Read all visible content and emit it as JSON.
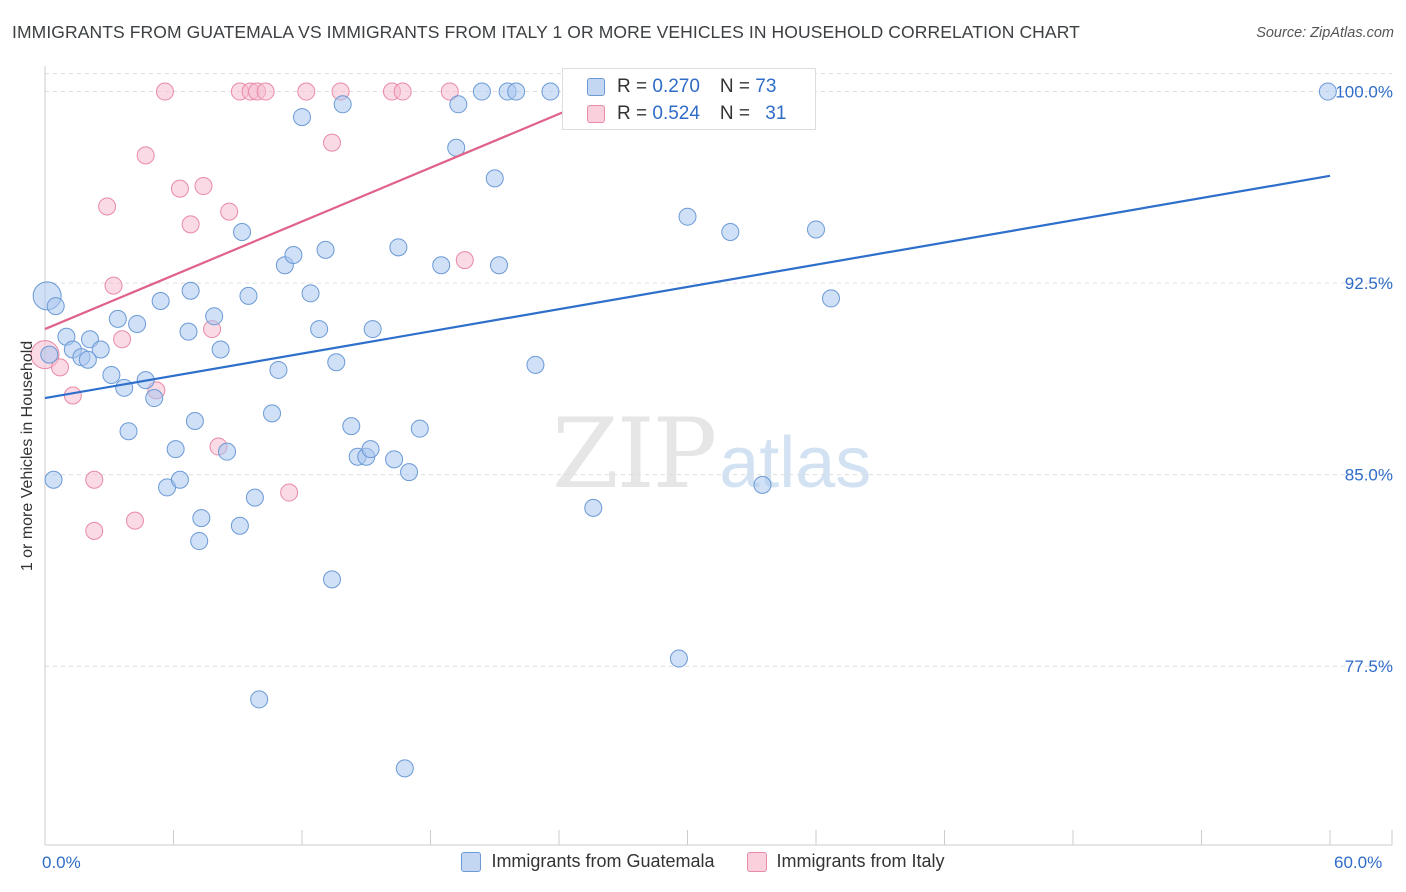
{
  "title": "IMMIGRANTS FROM GUATEMALA VS IMMIGRANTS FROM ITALY 1 OR MORE VEHICLES IN HOUSEHOLD CORRELATION CHART",
  "source": "Source: ZipAtlas.com",
  "watermark": {
    "zip": "ZIP",
    "atlas": "atlas"
  },
  "colors": {
    "guatemala_fill": "#a9c6ee",
    "guatemala_stroke": "#6b9ad6",
    "guatemala_line": "#2e6fcc",
    "italy_fill": "#f6bccd",
    "italy_stroke": "#e98aa6",
    "italy_line": "#e0628a",
    "tick_label": "#2f6cc8",
    "grid": "#dddddd"
  },
  "legend_box": {
    "rows": [
      {
        "series": "guatemala",
        "r_label": "R = ",
        "r_value": "0.270",
        "n_label": "N = ",
        "n_value": "73"
      },
      {
        "series": "italy",
        "r_label": "R = ",
        "r_value": "0.524",
        "n_label": "N = ",
        "n_value": "31"
      }
    ]
  },
  "bottom_legend": [
    {
      "series": "guatemala",
      "label": "Immigrants from Guatemala"
    },
    {
      "series": "italy",
      "label": "Immigrants from Italy"
    }
  ],
  "chart_data": {
    "type": "scatter",
    "title": "IMMIGRANTS FROM GUATEMALA VS IMMIGRANTS FROM ITALY 1 OR MORE VEHICLES IN HOUSEHOLD CORRELATION CHART",
    "xlabel": "",
    "ylabel": "1 or more Vehicles in Household",
    "xlim": [
      0,
      60
    ],
    "ylim": [
      70.5,
      101
    ],
    "x_tick_labels": [
      {
        "x": 0,
        "label": "0.0%"
      },
      {
        "x": 60,
        "label": "60.0%"
      }
    ],
    "y_ticks": [
      {
        "y": 100,
        "label": "100.0%"
      },
      {
        "y": 92.5,
        "label": "92.5%"
      },
      {
        "y": 85,
        "label": "85.0%"
      },
      {
        "y": 77.5,
        "label": "77.5%"
      }
    ],
    "x_minor_ticks": [
      0,
      6,
      12,
      18,
      24,
      30,
      36,
      42,
      48,
      54,
      60
    ],
    "grid": true,
    "legend_position": "top-center",
    "series": [
      {
        "name": "Immigrants from Guatemala",
        "key": "guatemala",
        "R": 0.27,
        "N": 73,
        "trend": [
          [
            0,
            88.0
          ],
          [
            60,
            96.7
          ]
        ],
        "points": [
          [
            0.1,
            92.0
          ],
          [
            0.5,
            91.6
          ],
          [
            1.0,
            90.4
          ],
          [
            1.3,
            89.9
          ],
          [
            1.7,
            89.6
          ],
          [
            2.1,
            90.3
          ],
          [
            2.6,
            89.9
          ],
          [
            3.1,
            88.9
          ],
          [
            3.4,
            91.1
          ],
          [
            3.7,
            88.4
          ],
          [
            4.3,
            90.9
          ],
          [
            4.7,
            88.7
          ],
          [
            5.1,
            88.0
          ],
          [
            5.4,
            91.8
          ],
          [
            3.9,
            86.7
          ],
          [
            5.7,
            84.5
          ],
          [
            6.1,
            86.0
          ],
          [
            6.3,
            84.8
          ],
          [
            7.0,
            87.1
          ],
          [
            7.3,
            83.3
          ],
          [
            7.2,
            82.4
          ],
          [
            6.7,
            90.6
          ],
          [
            6.8,
            92.2
          ],
          [
            7.9,
            91.2
          ],
          [
            8.2,
            89.9
          ],
          [
            8.5,
            85.9
          ],
          [
            9.1,
            83.0
          ],
          [
            9.8,
            84.1
          ],
          [
            9.2,
            94.5
          ],
          [
            9.5,
            92.0
          ],
          [
            10.6,
            87.4
          ],
          [
            10.9,
            89.1
          ],
          [
            11.2,
            93.2
          ],
          [
            11.6,
            93.6
          ],
          [
            12.4,
            92.1
          ],
          [
            12.0,
            99.0
          ],
          [
            12.8,
            90.7
          ],
          [
            13.1,
            93.8
          ],
          [
            13.6,
            89.4
          ],
          [
            13.9,
            99.5
          ],
          [
            14.3,
            86.9
          ],
          [
            14.6,
            85.7
          ],
          [
            15.0,
            85.7
          ],
          [
            15.2,
            86.0
          ],
          [
            15.3,
            90.7
          ],
          [
            16.3,
            85.6
          ],
          [
            16.5,
            93.9
          ],
          [
            17.0,
            85.1
          ],
          [
            17.5,
            86.8
          ],
          [
            18.5,
            93.2
          ],
          [
            19.2,
            97.8
          ],
          [
            19.3,
            99.5
          ],
          [
            20.4,
            100.0
          ],
          [
            21.0,
            96.6
          ],
          [
            21.2,
            93.2
          ],
          [
            21.6,
            100.0
          ],
          [
            22.0,
            100.0
          ],
          [
            23.6,
            100.0
          ],
          [
            22.9,
            89.3
          ],
          [
            25.6,
            83.7
          ],
          [
            29.6,
            77.8
          ],
          [
            30.0,
            95.1
          ],
          [
            32.0,
            94.5
          ],
          [
            33.5,
            84.6
          ],
          [
            36.0,
            94.6
          ],
          [
            36.7,
            91.9
          ],
          [
            10.0,
            76.2
          ],
          [
            13.4,
            80.9
          ],
          [
            16.8,
            73.5
          ],
          [
            0.4,
            84.8
          ],
          [
            59.9,
            100.0
          ],
          [
            0.2,
            89.7
          ],
          [
            2.0,
            89.5
          ]
        ]
      },
      {
        "name": "Immigrants from Italy",
        "key": "italy",
        "R": 0.524,
        "N": 31,
        "trend": [
          [
            0,
            90.7
          ],
          [
            26.5,
            100.0
          ]
        ],
        "points": [
          [
            0.0,
            89.7
          ],
          [
            0.7,
            89.2
          ],
          [
            1.3,
            88.1
          ],
          [
            2.3,
            84.8
          ],
          [
            2.3,
            82.8
          ],
          [
            2.9,
            95.5
          ],
          [
            3.2,
            92.4
          ],
          [
            3.6,
            90.3
          ],
          [
            4.2,
            83.2
          ],
          [
            4.7,
            97.5
          ],
          [
            5.2,
            88.3
          ],
          [
            5.6,
            100.0
          ],
          [
            6.3,
            96.2
          ],
          [
            6.8,
            94.8
          ],
          [
            7.4,
            96.3
          ],
          [
            7.8,
            90.7
          ],
          [
            8.1,
            86.1
          ],
          [
            8.6,
            95.3
          ],
          [
            9.1,
            100.0
          ],
          [
            9.6,
            100.0
          ],
          [
            9.9,
            100.0
          ],
          [
            10.3,
            100.0
          ],
          [
            11.4,
            84.3
          ],
          [
            12.2,
            100.0
          ],
          [
            13.4,
            98.0
          ],
          [
            13.8,
            100.0
          ],
          [
            16.2,
            100.0
          ],
          [
            16.7,
            100.0
          ],
          [
            18.9,
            100.0
          ],
          [
            19.6,
            93.4
          ],
          [
            30.9,
            100.0
          ]
        ]
      }
    ]
  }
}
